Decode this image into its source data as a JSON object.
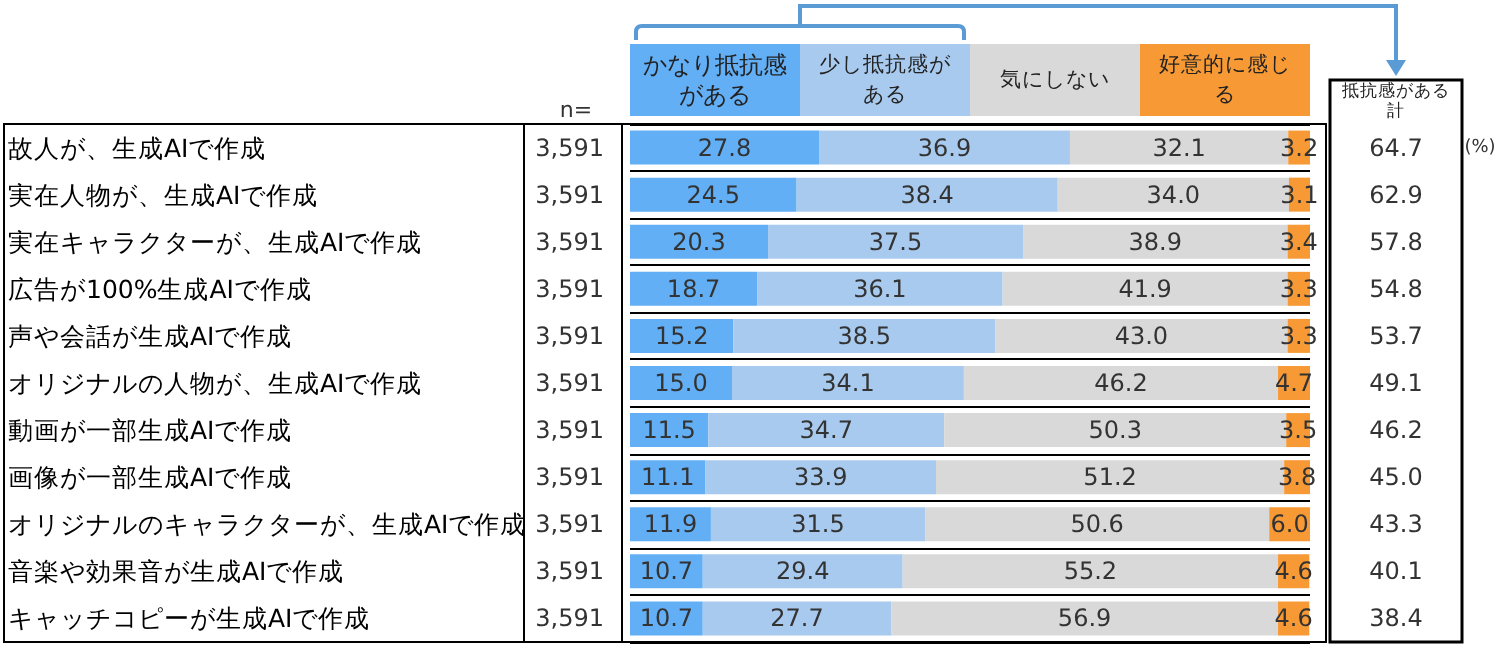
{
  "chart_data": {
    "type": "bar",
    "orientation": "horizontal",
    "stacked": true,
    "legend": "top",
    "grid": "y",
    "xlim": [
      0,
      100
    ],
    "categories": [
      "故人が、生成AIで作成",
      "実在人物が、生成AIで作成",
      "実在キャラクターが、生成AIで作成",
      "広告が100%生成AIで作成",
      "声や会話が生成AIで作成",
      "オリジナルの人物が、生成AIで作成",
      "動画が一部生成AIで作成",
      "画像が一部生成AIで作成",
      "オリジナルのキャラクターが、生成AIで作成",
      "音楽や効果音が生成AIで作成",
      "キャッチコピーが生成AIで作成"
    ],
    "series": [
      {
        "name": "かなり抵抗感がある",
        "color": "#63aff5",
        "values": [
          27.8,
          24.5,
          20.3,
          18.7,
          15.2,
          15.0,
          11.5,
          11.1,
          11.9,
          10.7,
          10.7
        ],
        "value_labels": [
          "27.8",
          "24.5",
          "20.3",
          "18.7",
          "15.2",
          "15.0",
          "11.5",
          "11.1",
          "11.9",
          "10.7",
          "10.7"
        ]
      },
      {
        "name": "少し抵抗感がある",
        "color": "#a8caee",
        "values": [
          36.9,
          38.4,
          37.5,
          36.1,
          38.5,
          34.1,
          34.7,
          33.9,
          31.5,
          29.4,
          27.7
        ],
        "value_labels": [
          "36.9",
          "38.4",
          "37.5",
          "36.1",
          "38.5",
          "34.1",
          "34.7",
          "33.9",
          "31.5",
          "29.4",
          "27.7"
        ]
      },
      {
        "name": "気にしない",
        "color": "#d9d9d9",
        "values": [
          32.1,
          34.0,
          38.9,
          41.9,
          43.0,
          46.2,
          50.3,
          51.2,
          50.6,
          55.2,
          56.9
        ],
        "value_labels": [
          "32.1",
          "34.0",
          "38.9",
          "41.9",
          "43.0",
          "46.2",
          "50.3",
          "51.2",
          "50.6",
          "55.2",
          "56.9"
        ]
      },
      {
        "name": "好意的に感じる",
        "color": "#f79a36",
        "values": [
          3.2,
          3.1,
          3.4,
          3.3,
          3.3,
          4.7,
          3.5,
          3.8,
          6.0,
          4.6,
          4.6
        ],
        "value_labels": [
          "3.2",
          "3.1",
          "3.4",
          "3.3",
          "3.3",
          "4.7",
          "3.5",
          "3.8",
          "6.0",
          "4.6",
          "4.6"
        ]
      }
    ],
    "annotations": [
      "n=",
      "抵抗感がある計",
      "(%)",
      "3,591",
      "3,591",
      "3,591",
      "3,591",
      "3,591",
      "3,591",
      "3,591",
      "3,591",
      "3,591",
      "3,591",
      "3,591",
      "64.7",
      "62.9",
      "57.8",
      "54.8",
      "53.7",
      "49.1",
      "46.2",
      "45.0",
      "43.3",
      "40.1",
      "38.4"
    ]
  }
}
